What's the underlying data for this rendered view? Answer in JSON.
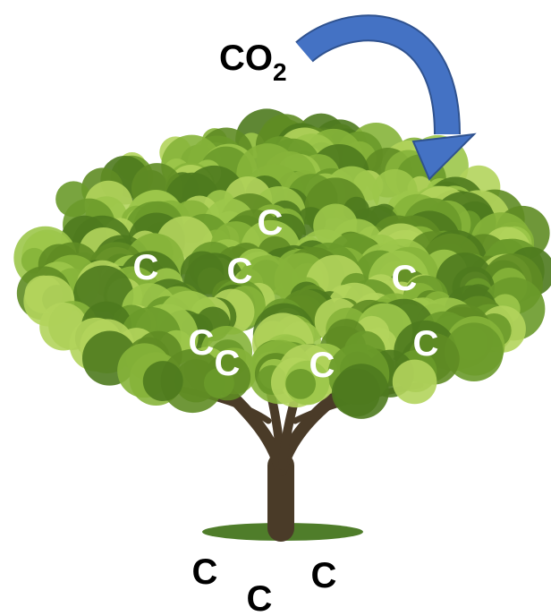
{
  "co2_label": {
    "main": "CO",
    "sub": "2"
  },
  "canopy_carbon": [
    "C",
    "C",
    "C",
    "C",
    "C",
    "C",
    "C",
    "C"
  ],
  "soil_carbon": [
    "C",
    "C",
    "C"
  ]
}
